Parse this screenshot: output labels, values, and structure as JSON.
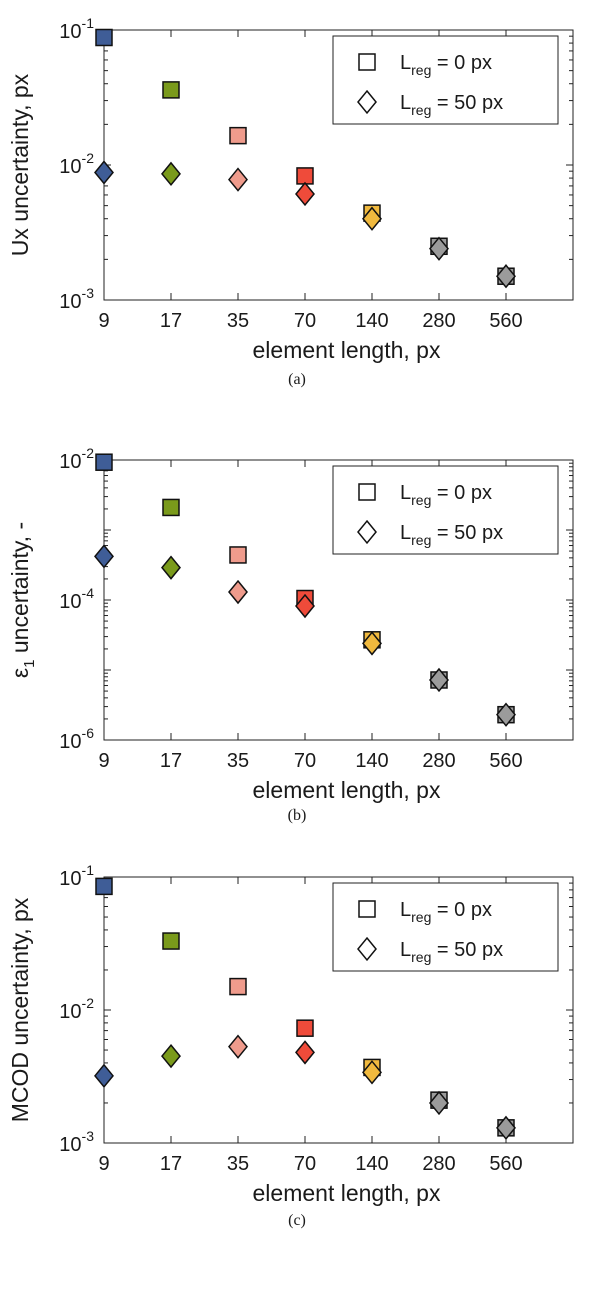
{
  "chart_data": [
    {
      "type": "scatter",
      "caption": "(a)",
      "ylabel": "Ux uncertainty, px",
      "xlabel": "element length, px",
      "x_scale": "log",
      "y_scale": "log",
      "ylim": [
        0.001,
        0.1
      ],
      "xlim": [
        9,
        560
      ],
      "x_ticks": [
        "9",
        "17",
        "35",
        "70",
        "140",
        "280",
        "560"
      ],
      "y_ticks": [
        {
          "value": 0.1,
          "base": "10",
          "exp": "-1"
        },
        {
          "value": 0.01,
          "base": "10",
          "exp": "-2"
        },
        {
          "value": 0.001,
          "base": "10",
          "exp": "-3"
        }
      ],
      "x": [
        9,
        17,
        35,
        70,
        140,
        280,
        560
      ],
      "series": [
        {
          "name": "L_reg = 0 px",
          "marker": "square",
          "values": [
            0.088,
            0.036,
            0.0165,
            0.0083,
            0.0044,
            0.0025,
            0.0015
          ]
        },
        {
          "name": "L_reg = 50 px",
          "marker": "diamond",
          "values": [
            0.0088,
            0.0086,
            0.0078,
            0.0061,
            0.004,
            0.0024,
            0.0015
          ]
        }
      ]
    },
    {
      "type": "scatter",
      "caption": "(b)",
      "ylabel": "ε1 uncertainty, -",
      "ylabel_symbol": "ε",
      "ylabel_sub": "1",
      "ylabel_rest": " uncertainty, -",
      "xlabel": "element length, px",
      "x_scale": "log",
      "y_scale": "log",
      "ylim": [
        1e-06,
        0.01
      ],
      "xlim": [
        9,
        560
      ],
      "x_ticks": [
        "9",
        "17",
        "35",
        "70",
        "140",
        "280",
        "560"
      ],
      "y_ticks": [
        {
          "value": 0.01,
          "base": "10",
          "exp": "-2"
        },
        {
          "value": 0.0001,
          "base": "10",
          "exp": "-4"
        },
        {
          "value": 1e-06,
          "base": "10",
          "exp": "-6"
        }
      ],
      "x": [
        9,
        17,
        35,
        70,
        140,
        280,
        560
      ],
      "series": [
        {
          "name": "L_reg = 0 px",
          "marker": "square",
          "values": [
            0.0093,
            0.0021,
            0.00044,
            0.000105,
            2.7e-05,
            7.2e-06,
            2.3e-06
          ]
        },
        {
          "name": "L_reg = 50 px",
          "marker": "diamond",
          "values": [
            0.00042,
            0.00029,
            0.00013,
            8.2e-05,
            2.4e-05,
            7.2e-06,
            2.3e-06
          ]
        }
      ]
    },
    {
      "type": "scatter",
      "caption": "(c)",
      "ylabel": "MCOD uncertainty, px",
      "xlabel": "element length, px",
      "x_scale": "log",
      "y_scale": "log",
      "ylim": [
        0.001,
        0.1
      ],
      "xlim": [
        9,
        560
      ],
      "x_ticks": [
        "9",
        "17",
        "35",
        "70",
        "140",
        "280",
        "560"
      ],
      "y_ticks": [
        {
          "value": 0.1,
          "base": "10",
          "exp": "-1"
        },
        {
          "value": 0.01,
          "base": "10",
          "exp": "-2"
        },
        {
          "value": 0.001,
          "base": "10",
          "exp": "-3"
        }
      ],
      "x": [
        9,
        17,
        35,
        70,
        140,
        280,
        560
      ],
      "series": [
        {
          "name": "L_reg = 0 px",
          "marker": "square",
          "values": [
            0.085,
            0.033,
            0.015,
            0.0073,
            0.0037,
            0.0021,
            0.0013
          ]
        },
        {
          "name": "L_reg = 50 px",
          "marker": "diamond",
          "values": [
            0.0032,
            0.0045,
            0.0053,
            0.0048,
            0.0034,
            0.002,
            0.0013
          ]
        }
      ]
    }
  ],
  "legend": {
    "entries": [
      {
        "base": "L",
        "sub": "reg",
        "suffix": " =  0 px",
        "marker": "square"
      },
      {
        "base": "L",
        "sub": "reg",
        "suffix": " = 50 px",
        "marker": "diamond"
      }
    ]
  },
  "marker_colors": [
    "#3f5d97",
    "#7a9a1b",
    "#ef9b8c",
    "#ef4b3a",
    "#f0b93e",
    "#9b9b9b",
    "#9b9b9b"
  ],
  "marker_edge_color": "#111111"
}
